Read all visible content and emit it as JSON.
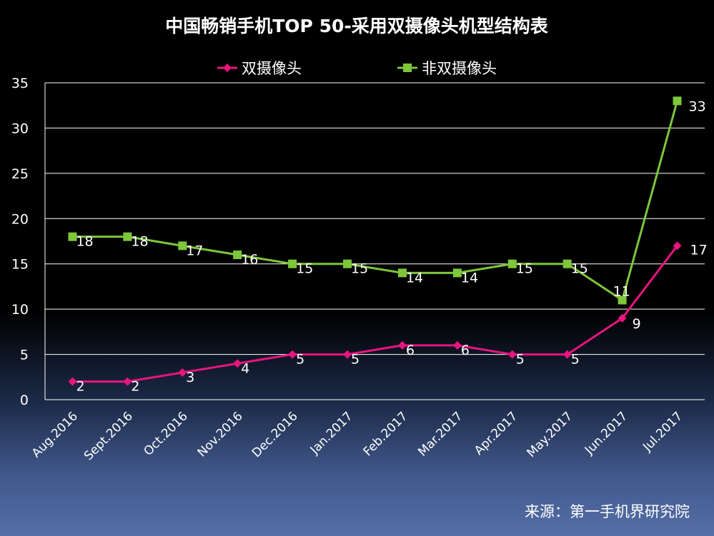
{
  "chart_data": {
    "type": "line",
    "title": "中国畅销手机TOP 50-采用双摄像头机型结构表",
    "categories": [
      "Aug.2016",
      "Sept.2016",
      "Oct.2016",
      "Nov.2016",
      "Dec.2016",
      "Jan.2017",
      "Feb.2017",
      "Mar.2017",
      "Apr.2017",
      "May.2017",
      "Jun.2017",
      "Jul.2017"
    ],
    "series": [
      {
        "name": "双摄像头",
        "values": [
          2,
          2,
          3,
          4,
          5,
          5,
          6,
          6,
          5,
          5,
          9,
          17
        ],
        "color": "#e8157f",
        "marker": "diamond"
      },
      {
        "name": "非双摄像头",
        "values": [
          18,
          18,
          17,
          16,
          15,
          15,
          14,
          14,
          15,
          15,
          11,
          33
        ],
        "color": "#7ec63a",
        "marker": "square"
      }
    ],
    "ylim": [
      0,
      35
    ],
    "yticks": [
      0,
      5,
      10,
      15,
      20,
      25,
      30,
      35
    ],
    "grid": true,
    "legend": "top-center",
    "background": "#000000",
    "text_color": "#ffffff"
  },
  "footer": {
    "source": "来源：第一手机界研究院"
  }
}
